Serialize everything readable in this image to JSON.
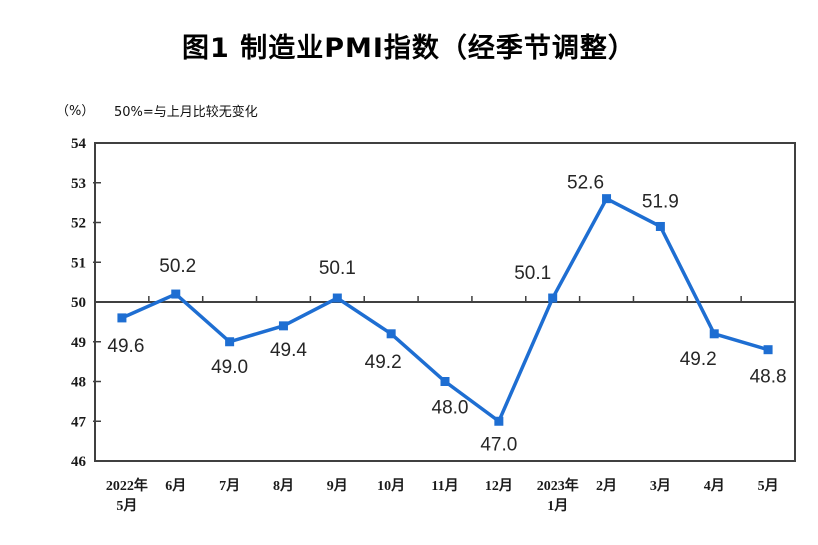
{
  "chart_data": {
    "type": "line",
    "title": "图1 制造业PMI指数（经季节调整）",
    "unit_label": "（%）",
    "reference_note": "50%=与上月比较无变化",
    "series_name": "制造业PMI指数",
    "categories": [
      [
        "2022年",
        "5月"
      ],
      [
        "6月"
      ],
      [
        "7月"
      ],
      [
        "8月"
      ],
      [
        "9月"
      ],
      [
        "10月"
      ],
      [
        "11月"
      ],
      [
        "12月"
      ],
      [
        "2023年",
        "1月"
      ],
      [
        "2月"
      ],
      [
        "3月"
      ],
      [
        "4月"
      ],
      [
        "5月"
      ]
    ],
    "values": [
      49.6,
      50.2,
      49.0,
      49.4,
      50.1,
      49.2,
      48.0,
      47.0,
      50.1,
      52.6,
      51.9,
      49.2,
      48.8
    ],
    "data_labels": [
      "49.6",
      "50.2",
      "49.0",
      "49.4",
      "50.1",
      "49.2",
      "48.0",
      "47.0",
      "50.1",
      "52.6",
      "51.9",
      "49.2",
      "48.8"
    ],
    "ylim": [
      46,
      54
    ],
    "yticks": [
      46,
      47,
      48,
      49,
      50,
      51,
      52,
      53,
      54
    ],
    "reference_line": 50,
    "grid": "off",
    "legend_position": "none",
    "marker": "square",
    "line_color": "#1E6ED2",
    "axis_color": "#404040",
    "text_color": "#1a1a1a",
    "label_color": "#262626",
    "background_color": "#ffffff"
  }
}
